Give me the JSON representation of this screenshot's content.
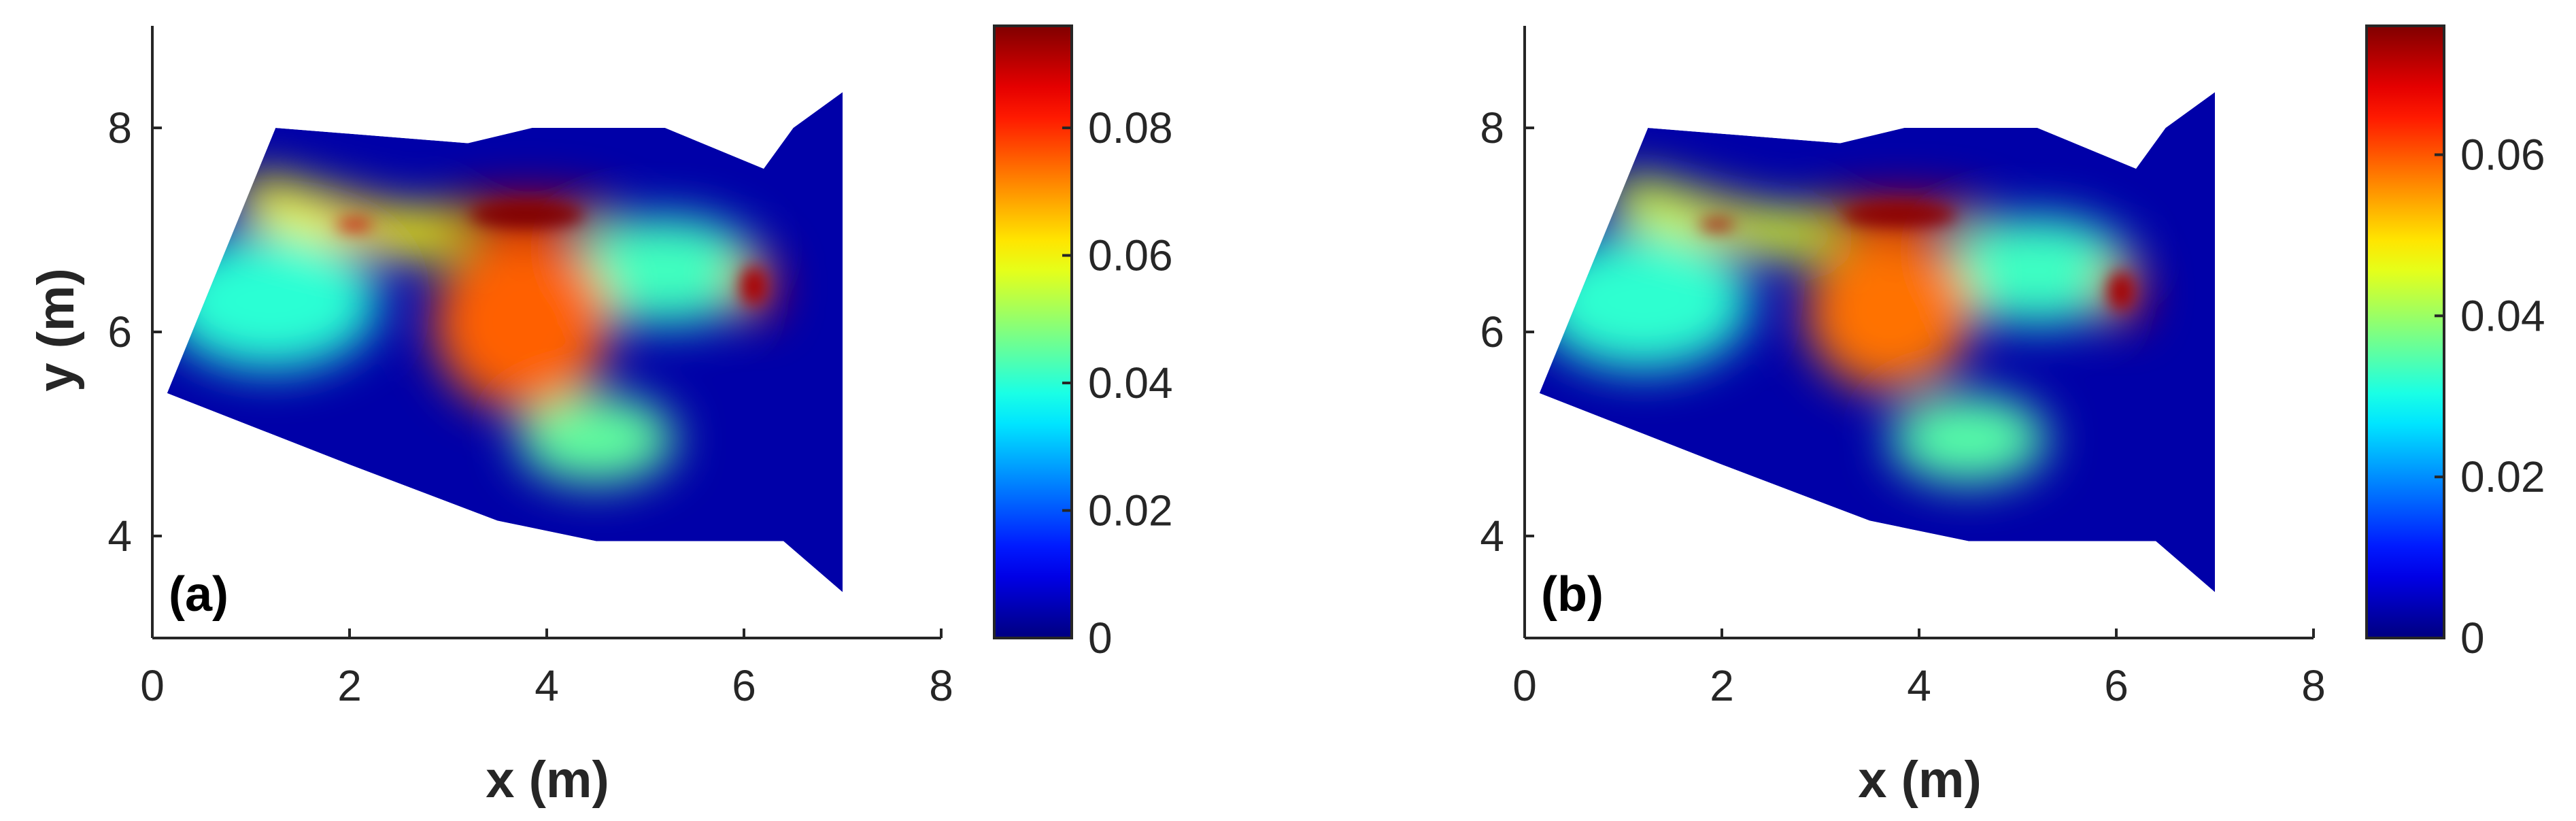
{
  "chart_data": [
    {
      "type": "heatmap",
      "panel_label": "(a)",
      "xlabel": "x (m)",
      "ylabel": "y (m)",
      "xlim": [
        0,
        8
      ],
      "ylim": [
        3,
        9
      ],
      "xticks": [
        0,
        2,
        4,
        6,
        8
      ],
      "yticks": [
        4,
        6,
        8
      ],
      "colorbar": {
        "min": 0,
        "max": 0.096,
        "ticks": [
          0,
          0.02,
          0.04,
          0.06,
          0.08
        ],
        "tick_labels": [
          "0",
          "0.02",
          "0.04",
          "0.06",
          "0.08"
        ],
        "colormap": "jet"
      },
      "domain_outline": [
        [
          0.15,
          5.4
        ],
        [
          1.25,
          8.0
        ],
        [
          3.2,
          7.85
        ],
        [
          3.85,
          8.0
        ],
        [
          5.2,
          8.0
        ],
        [
          6.2,
          7.6
        ],
        [
          6.5,
          8.0
        ],
        [
          7.0,
          8.35
        ],
        [
          7.0,
          3.45
        ],
        [
          6.4,
          3.95
        ],
        [
          4.5,
          3.95
        ],
        [
          3.5,
          4.15
        ],
        [
          2.0,
          4.7
        ],
        [
          0.15,
          5.4
        ]
      ],
      "features": [
        {
          "kind": "band",
          "points": [
            [
              1.1,
              7.3
            ],
            [
              1.9,
              7.1
            ],
            [
              2.6,
              6.95
            ],
            [
              3.0,
              7.0
            ]
          ],
          "value": 0.06
        },
        {
          "kind": "blob",
          "cx": 3.75,
          "cy": 6.1,
          "rx": 0.9,
          "ry": 0.9,
          "value": 0.075
        },
        {
          "kind": "blob",
          "cx": 3.8,
          "cy": 7.15,
          "rx": 0.95,
          "ry": 0.22,
          "value": 0.092
        },
        {
          "kind": "blob",
          "cx": 2.05,
          "cy": 7.05,
          "rx": 0.3,
          "ry": 0.09,
          "value": 0.085
        },
        {
          "kind": "blob",
          "cx": 6.1,
          "cy": 6.45,
          "rx": 0.22,
          "ry": 0.35,
          "value": 0.088
        },
        {
          "kind": "blob",
          "cx": 4.5,
          "cy": 4.95,
          "rx": 0.8,
          "ry": 0.45,
          "value": 0.045
        },
        {
          "kind": "blob",
          "cx": 5.2,
          "cy": 6.6,
          "rx": 1.0,
          "ry": 0.55,
          "value": 0.042
        },
        {
          "kind": "blob",
          "cx": 1.2,
          "cy": 6.3,
          "rx": 1.1,
          "ry": 0.7,
          "value": 0.04
        }
      ]
    },
    {
      "type": "heatmap",
      "panel_label": "(b)",
      "xlabel": "x (m)",
      "ylabel": "",
      "xlim": [
        0,
        8
      ],
      "ylim": [
        3,
        9
      ],
      "xticks": [
        0,
        2,
        4,
        6,
        8
      ],
      "yticks": [
        4,
        6,
        8
      ],
      "colorbar": {
        "min": 0,
        "max": 0.076,
        "ticks": [
          0,
          0.02,
          0.04,
          0.06
        ],
        "tick_labels": [
          "0",
          "0.02",
          "0.04",
          "0.06"
        ],
        "colormap": "jet"
      },
      "domain_outline": [
        [
          0.15,
          5.4
        ],
        [
          1.25,
          8.0
        ],
        [
          3.2,
          7.85
        ],
        [
          3.85,
          8.0
        ],
        [
          5.2,
          8.0
        ],
        [
          6.2,
          7.6
        ],
        [
          6.5,
          8.0
        ],
        [
          7.0,
          8.35
        ],
        [
          7.0,
          3.45
        ],
        [
          6.4,
          3.95
        ],
        [
          4.5,
          3.95
        ],
        [
          3.5,
          4.15
        ],
        [
          2.0,
          4.7
        ],
        [
          0.15,
          5.4
        ]
      ],
      "features": [
        {
          "kind": "band",
          "points": [
            [
              1.1,
              7.3
            ],
            [
              1.9,
              7.1
            ],
            [
              2.6,
              6.95
            ],
            [
              3.0,
              7.0
            ]
          ],
          "value": 0.045
        },
        {
          "kind": "blob",
          "cx": 3.7,
          "cy": 6.2,
          "rx": 0.85,
          "ry": 0.8,
          "value": 0.058
        },
        {
          "kind": "blob",
          "cx": 3.8,
          "cy": 7.15,
          "rx": 0.95,
          "ry": 0.2,
          "value": 0.072
        },
        {
          "kind": "blob",
          "cx": 1.95,
          "cy": 7.05,
          "rx": 0.3,
          "ry": 0.09,
          "value": 0.07
        },
        {
          "kind": "blob",
          "cx": 6.05,
          "cy": 6.4,
          "rx": 0.22,
          "ry": 0.35,
          "value": 0.07
        },
        {
          "kind": "blob",
          "cx": 4.5,
          "cy": 4.95,
          "rx": 0.8,
          "ry": 0.45,
          "value": 0.035
        },
        {
          "kind": "blob",
          "cx": 5.2,
          "cy": 6.6,
          "rx": 1.0,
          "ry": 0.55,
          "value": 0.033
        },
        {
          "kind": "blob",
          "cx": 1.2,
          "cy": 6.3,
          "rx": 1.1,
          "ry": 0.7,
          "value": 0.032
        }
      ]
    }
  ]
}
